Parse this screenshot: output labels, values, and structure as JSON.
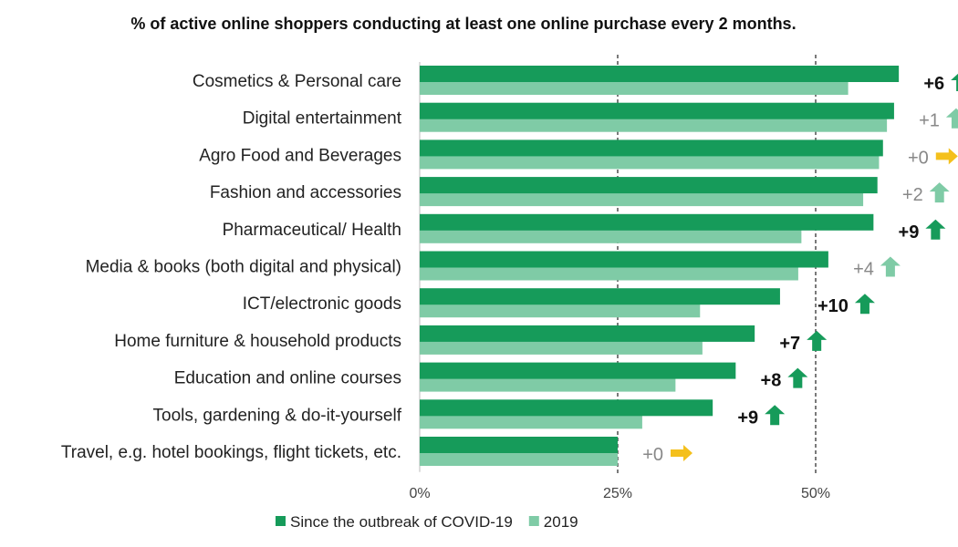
{
  "chart_data": {
    "type": "bar",
    "orientation": "horizontal",
    "title": "% of active online shoppers conducting at least one online purchase every 2 months.",
    "categories": [
      "Cosmetics & Personal care",
      "Digital entertainment",
      "Agro Food and Beverages",
      "Fashion and accessories",
      "Pharmaceutical/ Health",
      "Media & books (both digital and physical)",
      "ICT/electronic goods",
      "Home furniture & household products",
      "Education and online courses",
      "Tools, gardening & do-it-yourself",
      "Travel, e.g. hotel bookings, flight tickets, etc."
    ],
    "series": [
      {
        "name": "Since the outbreak of COVID-19",
        "color": "#169b5a",
        "values": [
          60.5,
          59.9,
          58.5,
          57.8,
          57.3,
          51.6,
          45.5,
          42.3,
          39.9,
          37.0,
          25.0
        ]
      },
      {
        "name": "2019",
        "color": "#7fcba6",
        "values": [
          54.1,
          59.0,
          58.0,
          56.0,
          48.2,
          47.8,
          35.4,
          35.7,
          32.3,
          28.1,
          25.0
        ]
      }
    ],
    "annotations": [
      {
        "label": "+6",
        "bold": true,
        "arrow": "up"
      },
      {
        "label": "+1",
        "bold": false,
        "arrow": "up"
      },
      {
        "label": "+0",
        "bold": false,
        "arrow": "right"
      },
      {
        "label": "+2",
        "bold": false,
        "arrow": "up"
      },
      {
        "label": "+9",
        "bold": true,
        "arrow": "up"
      },
      {
        "label": "+4",
        "bold": false,
        "arrow": "up"
      },
      {
        "label": "+10",
        "bold": true,
        "arrow": "up"
      },
      {
        "label": "+7",
        "bold": true,
        "arrow": "up"
      },
      {
        "label": "+8",
        "bold": true,
        "arrow": "up"
      },
      {
        "label": "+9",
        "bold": true,
        "arrow": "up"
      },
      {
        "label": "+0",
        "bold": false,
        "arrow": "right"
      }
    ],
    "xticks": [
      "0%",
      "25%",
      "50%"
    ],
    "xlim": [
      0,
      60
    ],
    "gridlines": [
      25,
      50
    ],
    "grid": "dashed vertical at 25% and 50%",
    "legend": "bottom",
    "colors": {
      "arrow_strong": "#169b5a",
      "arrow_weak": "#7fcba6",
      "arrow_flat": "#f4c01c",
      "label_strong": "#111111",
      "label_weak": "#888888"
    }
  }
}
